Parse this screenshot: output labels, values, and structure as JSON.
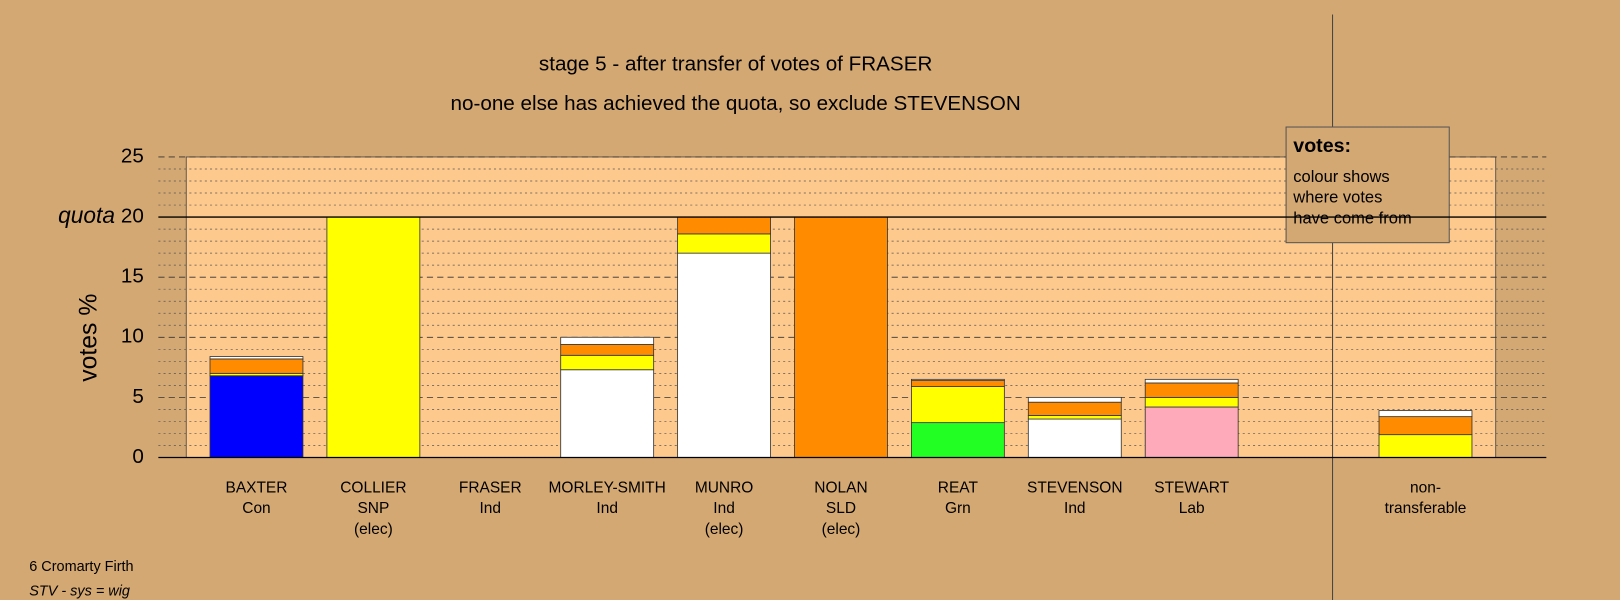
{
  "chart_data": {
    "type": "stacked-bar",
    "title": "stage 5 - after transfer of votes of FRASER",
    "subtitle": "no-one else has achieved the quota, so exclude STEVENSON",
    "ylabel": "votes %",
    "quota": {
      "label": "quota",
      "value": 20
    },
    "categories": [
      [
        "BAXTER",
        "Con"
      ],
      [
        "COLLIER",
        "SNP",
        "(elec)"
      ],
      [
        "FRASER",
        "Ind"
      ],
      [
        "MORLEY-SMITH",
        "Ind"
      ],
      [
        "MUNRO",
        "Ind",
        "(elec)"
      ],
      [
        "NOLAN",
        "SLD",
        "(elec)"
      ],
      [
        "REAT",
        "Grn"
      ],
      [
        "STEVENSON",
        "Ind"
      ],
      [
        "STEWART",
        "Lab"
      ],
      null,
      [
        "non-",
        "transferable"
      ]
    ],
    "segments": [
      [
        {
          "color": "#0000ff",
          "value": 6.8
        },
        {
          "color": "#ffff00",
          "value": 0.2
        },
        {
          "color": "#ff8c00",
          "value": 1.2
        },
        {
          "color": "#ffffff",
          "value": 0.2
        }
      ],
      [
        {
          "color": "#ffff00",
          "value": 20
        }
      ],
      [],
      [
        {
          "color": "#ffffff",
          "value": 7.3
        },
        {
          "color": "#ffff00",
          "value": 1.2
        },
        {
          "color": "#ff8c00",
          "value": 0.9
        },
        {
          "color": "#ffffff",
          "value": 0.6
        }
      ],
      [
        {
          "color": "#ffffff",
          "value": 17.0
        },
        {
          "color": "#ffff00",
          "value": 1.6
        },
        {
          "color": "#ff8c00",
          "value": 1.4
        }
      ],
      [
        {
          "color": "#ff8c00",
          "value": 20
        }
      ],
      [
        {
          "color": "#22ff22",
          "value": 2.9
        },
        {
          "color": "#ffff00",
          "value": 3.0
        },
        {
          "color": "#ff8c00",
          "value": 0.5
        },
        {
          "color": "#ffffff",
          "value": 0.1
        }
      ],
      [
        {
          "color": "#ffffff",
          "value": 3.2
        },
        {
          "color": "#ffff00",
          "value": 0.3
        },
        {
          "color": "#ff8c00",
          "value": 1.1
        },
        {
          "color": "#ffffff",
          "value": 0.4
        }
      ],
      [
        {
          "color": "#ffaabb",
          "value": 4.2
        },
        {
          "color": "#ffff00",
          "value": 0.8
        },
        {
          "color": "#ff8c00",
          "value": 1.2
        },
        {
          "color": "#ffffff",
          "value": 0.3
        }
      ],
      [],
      [
        {
          "color": "#ffff00",
          "value": 1.9
        },
        {
          "color": "#ff8c00",
          "value": 1.5
        },
        {
          "color": "#ffffff",
          "value": 0.5
        }
      ]
    ],
    "ylim": [
      0,
      25
    ],
    "yticks": [
      0,
      5,
      10,
      15,
      20,
      25
    ],
    "yminor": [
      1,
      2,
      3,
      4,
      6,
      7,
      8,
      9,
      11,
      12,
      13,
      14,
      16,
      17,
      18,
      19,
      21,
      22,
      23,
      24
    ],
    "grid": true,
    "legend": {
      "title": "votes:",
      "lines": [
        "colour shows",
        "where votes",
        "have come from"
      ]
    },
    "notes": [
      "6 Cromarty Firth",
      "STV - sys = wig"
    ]
  }
}
